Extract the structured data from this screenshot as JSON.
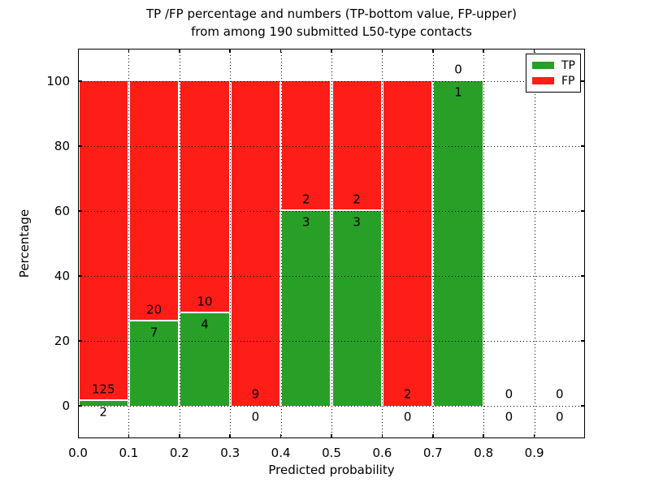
{
  "chart_data": {
    "type": "bar",
    "stacked": true,
    "title": "TP /FP percentage and numbers (TP-bottom value, FP-upper)\nfrom among 190 submitted L50-type contacts",
    "xlabel": "Predicted probability",
    "ylabel": "Percentage",
    "xlim": [
      0.0,
      1.0
    ],
    "ylim": [
      -10,
      110
    ],
    "grid": "dotted, drawn above bars",
    "legend_position": "upper right",
    "x_tick_values": [
      0.0,
      0.1,
      0.2,
      0.3,
      0.4,
      0.5,
      0.6,
      0.7,
      0.8,
      0.9
    ],
    "x_tick_labels": [
      "0.0",
      "0.1",
      "0.2",
      "0.3",
      "0.4",
      "0.5",
      "0.6",
      "0.7",
      "0.8",
      "0.9"
    ],
    "y_tick_values": [
      0,
      20,
      40,
      60,
      80,
      100
    ],
    "y_tick_labels": [
      "0",
      "20",
      "40",
      "60",
      "80",
      "100"
    ],
    "bin_edges": [
      0.0,
      0.1,
      0.2,
      0.3,
      0.4,
      0.5,
      0.6,
      0.7,
      0.8,
      0.9,
      1.0
    ],
    "bar_value_unit": "percent of bin total (TP bottom, FP stacked to 100%)",
    "series": [
      {
        "name": "TP",
        "color": "#28a028",
        "counts": [
          2,
          7,
          4,
          0,
          3,
          3,
          0,
          1,
          0,
          0
        ]
      },
      {
        "name": "FP",
        "color": "#ff1d17",
        "counts": [
          125,
          20,
          10,
          9,
          2,
          2,
          2,
          0,
          0,
          0
        ]
      }
    ],
    "tp_percent_per_bin": [
      1.6,
      25.9,
      28.6,
      0.0,
      60.0,
      60.0,
      0.0,
      100.0,
      null,
      null
    ],
    "total_contacts": 190
  }
}
